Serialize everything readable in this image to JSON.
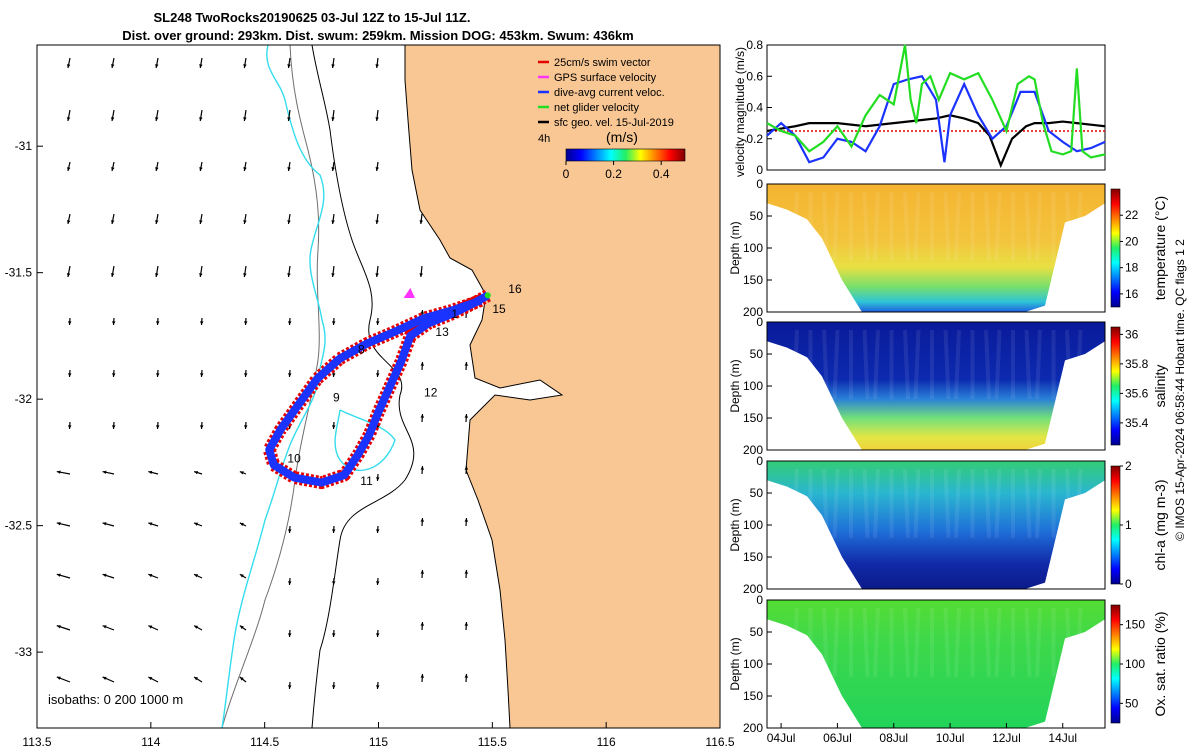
{
  "title": {
    "line1": "SL248 TwoRocks20190625 03-Jul 12Z to 15-Jul 11Z.",
    "line2": "Dist. over ground: 293km. Dist. swum: 259km. Mission DOG: 453km. Swum: 436km"
  },
  "colors": {
    "land": "#f9c794",
    "coast_line": "#000000",
    "isobath_grey": "#6e6e6e",
    "cyan_contour": "#33ddee",
    "swim_red": "#e60000",
    "dive_blue": "#1a33ff",
    "gps_magenta": "#ff33ff",
    "net_green": "#22dd22",
    "geo_black": "#000000"
  },
  "chart_data": [
    {
      "type": "scatter",
      "name": "map",
      "xlim": [
        113.5,
        116.5
      ],
      "ylim": [
        -33.3,
        -30.6
      ],
      "xticks": [
        113.5,
        114,
        114.5,
        115,
        115.5,
        116,
        116.5
      ],
      "xtick_labels": [
        "113.5",
        "114",
        "114.5",
        "115",
        "115.5",
        "116",
        "116.5"
      ],
      "yticks": [
        -31,
        -31.5,
        -32,
        -32.5,
        -33
      ],
      "ytick_labels": [
        "-31",
        "-31.5",
        "-32",
        "-32.5",
        "-33"
      ],
      "legend": {
        "placement": "top-right",
        "entries": [
          "25cm/s swim vector",
          "GPS surface velocity",
          "dive-avg current veloc.",
          "net glider velocity",
          "sfc geo. vel. 15-Jul-2019"
        ],
        "colors": [
          "#e60000",
          "#ff33ff",
          "#1a33ff",
          "#22dd22",
          "#000000"
        ]
      },
      "colorbar": {
        "label": "(m/s)",
        "corner_label": "4h",
        "ticks": [
          0,
          0.2,
          0.4
        ],
        "tick_labels": [
          "0",
          "0.2",
          "0.4"
        ],
        "range": [
          0,
          0.5
        ]
      },
      "isobath_label": "isobaths: 0   200  1000 m",
      "track": [
        [
          115.48,
          -31.59
        ],
        [
          115.42,
          -31.62
        ],
        [
          115.33,
          -31.66
        ],
        [
          115.22,
          -31.7
        ],
        [
          115.14,
          -31.75
        ],
        [
          115.1,
          -31.85
        ],
        [
          115.05,
          -31.95
        ],
        [
          115.0,
          -32.05
        ],
        [
          114.96,
          -32.14
        ],
        [
          114.91,
          -32.22
        ],
        [
          114.85,
          -32.3
        ],
        [
          114.75,
          -32.33
        ],
        [
          114.63,
          -32.31
        ],
        [
          114.54,
          -32.26
        ],
        [
          114.52,
          -32.2
        ],
        [
          114.57,
          -32.12
        ],
        [
          114.65,
          -32.02
        ],
        [
          114.73,
          -31.92
        ],
        [
          114.83,
          -31.84
        ],
        [
          114.95,
          -31.78
        ],
        [
          115.08,
          -31.73
        ],
        [
          115.2,
          -31.68
        ],
        [
          115.32,
          -31.65
        ],
        [
          115.45,
          -31.61
        ]
      ],
      "track_labels": [
        {
          "text": "8",
          "x": 114.91,
          "y": -31.82
        },
        {
          "text": "9",
          "x": 114.8,
          "y": -32.01
        },
        {
          "text": "10",
          "x": 114.6,
          "y": -32.25
        },
        {
          "text": "11",
          "x": 114.92,
          "y": -32.34
        },
        {
          "text": "12",
          "x": 115.2,
          "y": -31.99
        },
        {
          "text": "13",
          "x": 115.25,
          "y": -31.75
        },
        {
          "text": "1",
          "x": 115.32,
          "y": -31.68
        },
        {
          "text": "15",
          "x": 115.5,
          "y": -31.66
        },
        {
          "text": "16",
          "x": 115.57,
          "y": -31.58
        }
      ]
    },
    {
      "type": "line",
      "name": "velocity",
      "ylabel": "velocity magnitude (m/s)",
      "xlim": [
        3.5,
        15.5
      ],
      "ylim": [
        0,
        0.8
      ],
      "yticks": [
        0,
        0.2,
        0.4,
        0.6,
        0.8
      ],
      "ytick_labels": [
        "0",
        "0.2",
        "0.4",
        "0.6",
        "0.8"
      ],
      "series": [
        {
          "color": "#e60000",
          "x": [
            3.5,
            15.5
          ],
          "values": [
            0.25,
            0.25
          ]
        },
        {
          "color": "#000000",
          "x": [
            3.5,
            4.5,
            5,
            6,
            7,
            8,
            9,
            9.5,
            10,
            10.5,
            11,
            11.4,
            11.8,
            12.2,
            12.7,
            13,
            13.5,
            14,
            14.5,
            15,
            15.5
          ],
          "values": [
            0.25,
            0.28,
            0.3,
            0.3,
            0.28,
            0.3,
            0.32,
            0.33,
            0.35,
            0.33,
            0.3,
            0.22,
            0.03,
            0.2,
            0.28,
            0.3,
            0.3,
            0.31,
            0.3,
            0.29,
            0.28
          ]
        },
        {
          "color": "#1a33ff",
          "x": [
            3.5,
            4,
            4.5,
            5,
            5.5,
            6,
            6.5,
            7,
            7.5,
            8,
            8.5,
            9,
            9.5,
            9.8,
            10,
            10.5,
            11,
            11.5,
            12,
            12.5,
            13,
            13.5,
            14,
            14.5,
            15,
            15.5
          ],
          "values": [
            0.22,
            0.3,
            0.22,
            0.05,
            0.08,
            0.2,
            0.18,
            0.12,
            0.28,
            0.55,
            0.58,
            0.6,
            0.45,
            0.05,
            0.35,
            0.55,
            0.35,
            0.2,
            0.28,
            0.5,
            0.5,
            0.25,
            0.18,
            0.12,
            0.14,
            0.18
          ]
        },
        {
          "color": "#22dd22",
          "x": [
            3.5,
            4,
            4.5,
            5,
            5.5,
            6,
            6.5,
            7,
            7.5,
            8,
            8.4,
            8.6,
            8.8,
            9,
            9.3,
            9.6,
            10,
            10.5,
            11,
            11.5,
            12,
            12.4,
            12.8,
            13,
            13.3,
            13.6,
            14,
            14.3,
            14.5,
            14.7,
            15,
            15.5
          ],
          "values": [
            0.3,
            0.25,
            0.22,
            0.12,
            0.18,
            0.28,
            0.15,
            0.35,
            0.48,
            0.42,
            0.8,
            0.45,
            0.3,
            0.55,
            0.6,
            0.45,
            0.62,
            0.58,
            0.62,
            0.45,
            0.25,
            0.55,
            0.6,
            0.58,
            0.3,
            0.12,
            0.1,
            0.12,
            0.65,
            0.12,
            0.08,
            0.1
          ]
        }
      ]
    },
    {
      "type": "heatmap",
      "name": "temperature",
      "ylabel": "Depth (m)",
      "yticks": [
        0,
        50,
        100,
        150,
        200
      ],
      "ytick_labels": [
        "0",
        "50",
        "100",
        "150",
        "200"
      ],
      "colorbar_label": "temperature (°C)",
      "colorbar_ticks": [
        16,
        18,
        20,
        22
      ],
      "colorbar_tick_labels": [
        "16",
        "18",
        "20",
        "22"
      ],
      "colorbar_range": [
        15,
        24
      ]
    },
    {
      "type": "heatmap",
      "name": "salinity",
      "ylabel": "Depth (m)",
      "yticks": [
        0,
        50,
        100,
        150,
        200
      ],
      "ytick_labels": [
        "0",
        "50",
        "100",
        "150",
        "200"
      ],
      "colorbar_label": "salinity",
      "colorbar_ticks": [
        35.4,
        35.6,
        35.8,
        36
      ],
      "colorbar_tick_labels": [
        "35.4",
        "35.6",
        "35.8",
        "36"
      ],
      "colorbar_range": [
        35.25,
        36.05
      ]
    },
    {
      "type": "heatmap",
      "name": "chla",
      "ylabel": "Depth (m)",
      "yticks": [
        0,
        50,
        100,
        150,
        200
      ],
      "ytick_labels": [
        "0",
        "50",
        "100",
        "150",
        "200"
      ],
      "colorbar_label": "chl-a (mg m-3)",
      "colorbar_ticks": [
        0,
        1,
        2
      ],
      "colorbar_tick_labels": [
        "0",
        "1",
        "2"
      ],
      "colorbar_range": [
        0,
        2
      ]
    },
    {
      "type": "heatmap",
      "name": "oxygen",
      "ylabel": "Depth (m)",
      "yticks": [
        0,
        50,
        100,
        150,
        200
      ],
      "ytick_labels": [
        "0",
        "50",
        "100",
        "150",
        "200"
      ],
      "xticks": [
        4,
        6,
        8,
        10,
        12,
        14
      ],
      "xtick_labels": [
        "04Jul",
        "06Jul",
        "08Jul",
        "10Jul",
        "12Jul",
        "14Jul"
      ],
      "xlim": [
        3.5,
        15.5
      ],
      "colorbar_label": "Ox. sat. ratio (%)",
      "colorbar_ticks": [
        50,
        100,
        150
      ],
      "colorbar_tick_labels": [
        "50",
        "100",
        "150"
      ],
      "colorbar_range": [
        25,
        175
      ]
    }
  ],
  "side_note": "© IMOS 15-Apr-2024 06:58:44 Hobart time. QC flags 1  2"
}
